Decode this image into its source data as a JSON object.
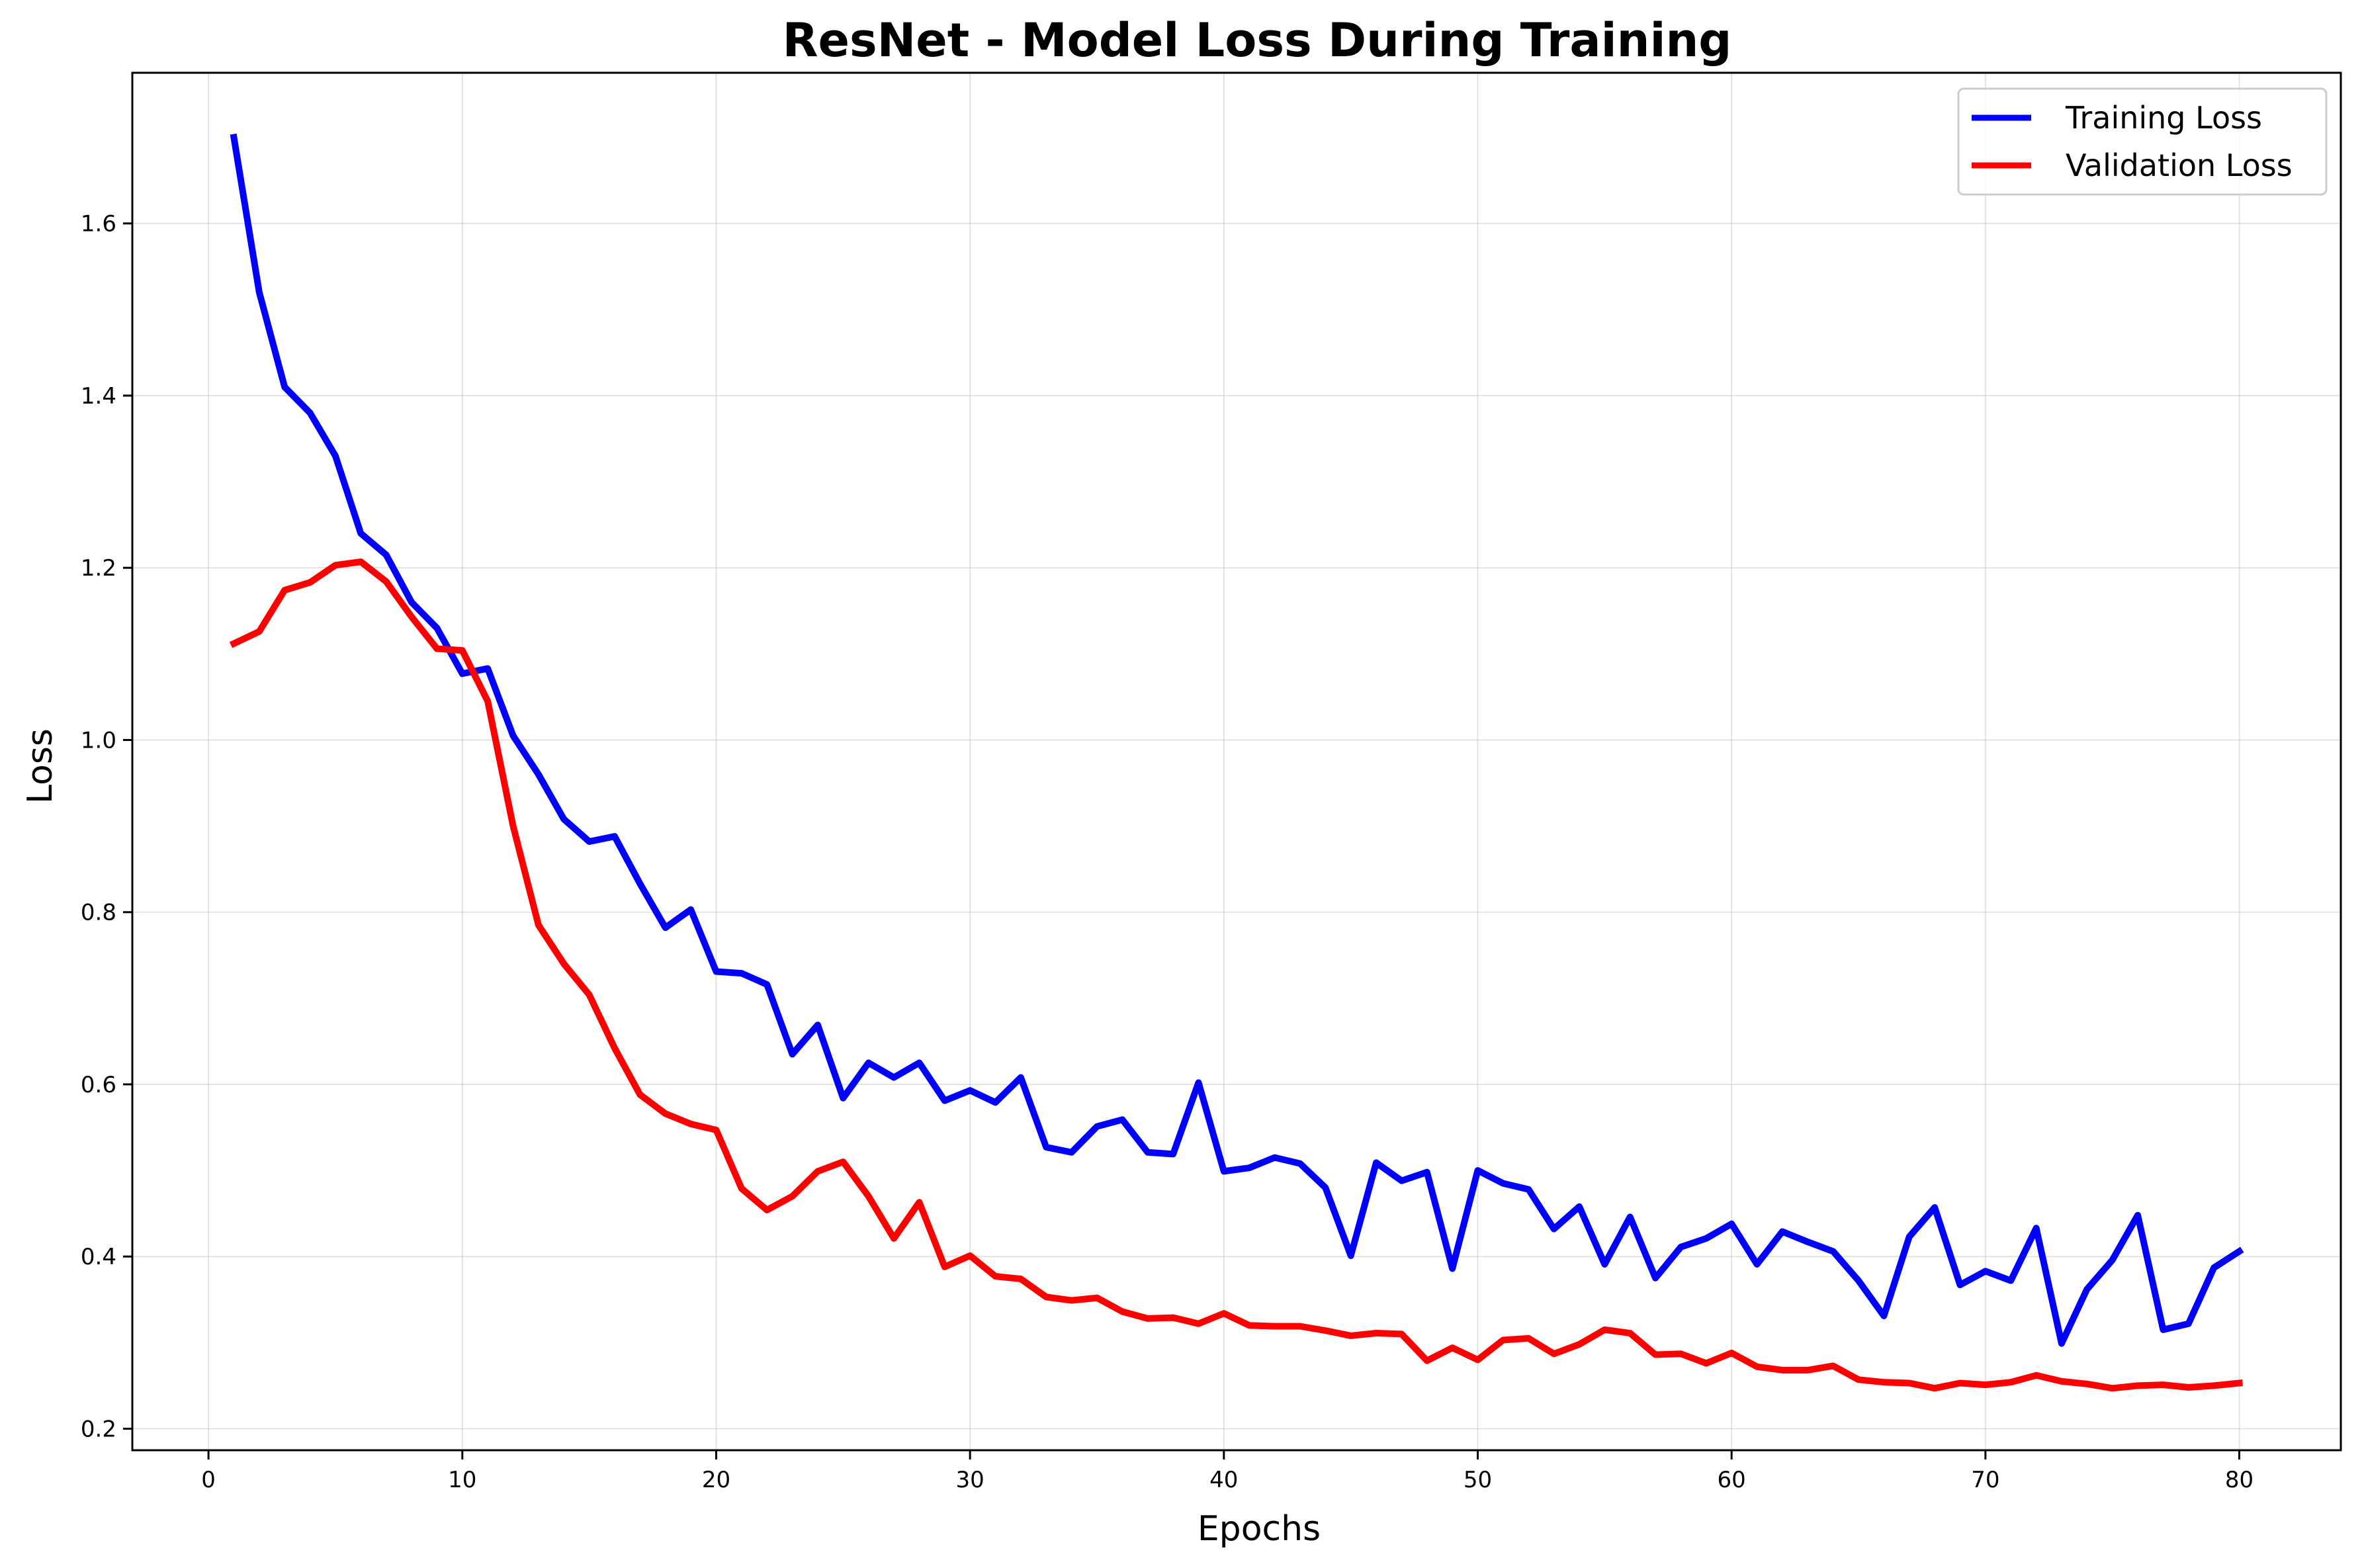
{
  "chart_data": {
    "type": "line",
    "title": "ResNet - Model Loss During Training",
    "xlabel": "Epochs",
    "ylabel": "Loss",
    "xlim": [
      -3,
      84
    ],
    "ylim": [
      0.175,
      1.775
    ],
    "xticks": [
      0,
      10,
      20,
      30,
      40,
      50,
      60,
      70,
      80
    ],
    "yticks": [
      0.2,
      0.4,
      0.6,
      0.8,
      1.0,
      1.2,
      1.4,
      1.6
    ],
    "xtick_labels": [
      "0",
      "10",
      "20",
      "30",
      "40",
      "50",
      "60",
      "70",
      "80"
    ],
    "ytick_labels": [
      "0.2",
      "0.4",
      "0.6",
      "0.8",
      "1.0",
      "1.2",
      "1.4",
      "1.6"
    ],
    "grid": true,
    "legend_position": "top-right",
    "x": [
      1,
      2,
      3,
      4,
      5,
      6,
      7,
      8,
      9,
      10,
      11,
      12,
      13,
      14,
      15,
      16,
      17,
      18,
      19,
      20,
      21,
      22,
      23,
      24,
      25,
      26,
      27,
      28,
      29,
      30,
      31,
      32,
      33,
      34,
      35,
      36,
      37,
      38,
      39,
      40,
      41,
      42,
      43,
      44,
      45,
      46,
      47,
      48,
      49,
      50,
      51,
      52,
      53,
      54,
      55,
      56,
      57,
      58,
      59,
      60,
      61,
      62,
      63,
      64,
      65,
      66,
      67,
      68,
      69,
      70,
      71,
      72,
      73,
      74,
      75,
      76,
      77,
      78,
      79,
      80
    ],
    "series": [
      {
        "name": "Training Loss",
        "color": "#0000ff",
        "values": [
          1.7,
          1.52,
          1.41,
          1.38,
          1.33,
          1.24,
          1.215,
          1.16,
          1.13,
          1.077,
          1.083,
          1.005,
          0.96,
          0.908,
          0.882,
          0.888,
          0.833,
          0.782,
          0.803,
          0.731,
          0.729,
          0.716,
          0.635,
          0.669,
          0.584,
          0.625,
          0.608,
          0.625,
          0.581,
          0.593,
          0.579,
          0.608,
          0.527,
          0.521,
          0.551,
          0.559,
          0.521,
          0.519,
          0.602,
          0.499,
          0.503,
          0.515,
          0.508,
          0.48,
          0.401,
          0.509,
          0.488,
          0.498,
          0.386,
          0.5,
          0.485,
          0.478,
          0.432,
          0.458,
          0.391,
          0.446,
          0.375,
          0.411,
          0.421,
          0.438,
          0.391,
          0.429,
          0.417,
          0.406,
          0.372,
          0.331,
          0.423,
          0.457,
          0.367,
          0.383,
          0.372,
          0.433,
          0.299,
          0.362,
          0.396,
          0.448,
          0.315,
          0.322,
          0.387,
          0.406
        ]
      },
      {
        "name": "Validation Loss",
        "color": "#ff0000",
        "values": [
          1.112,
          1.126,
          1.174,
          1.183,
          1.203,
          1.207,
          1.184,
          1.143,
          1.106,
          1.104,
          1.045,
          0.9,
          0.785,
          0.74,
          0.704,
          0.642,
          0.588,
          0.566,
          0.554,
          0.547,
          0.479,
          0.454,
          0.47,
          0.499,
          0.51,
          0.47,
          0.421,
          0.463,
          0.388,
          0.401,
          0.377,
          0.374,
          0.353,
          0.349,
          0.352,
          0.336,
          0.328,
          0.329,
          0.322,
          0.334,
          0.32,
          0.319,
          0.319,
          0.314,
          0.308,
          0.311,
          0.31,
          0.279,
          0.294,
          0.28,
          0.303,
          0.305,
          0.287,
          0.298,
          0.315,
          0.311,
          0.286,
          0.287,
          0.276,
          0.288,
          0.272,
          0.268,
          0.268,
          0.273,
          0.257,
          0.254,
          0.253,
          0.247,
          0.253,
          0.251,
          0.254,
          0.262,
          0.255,
          0.252,
          0.247,
          0.25,
          0.251,
          0.248,
          0.25,
          0.253
        ]
      }
    ]
  }
}
